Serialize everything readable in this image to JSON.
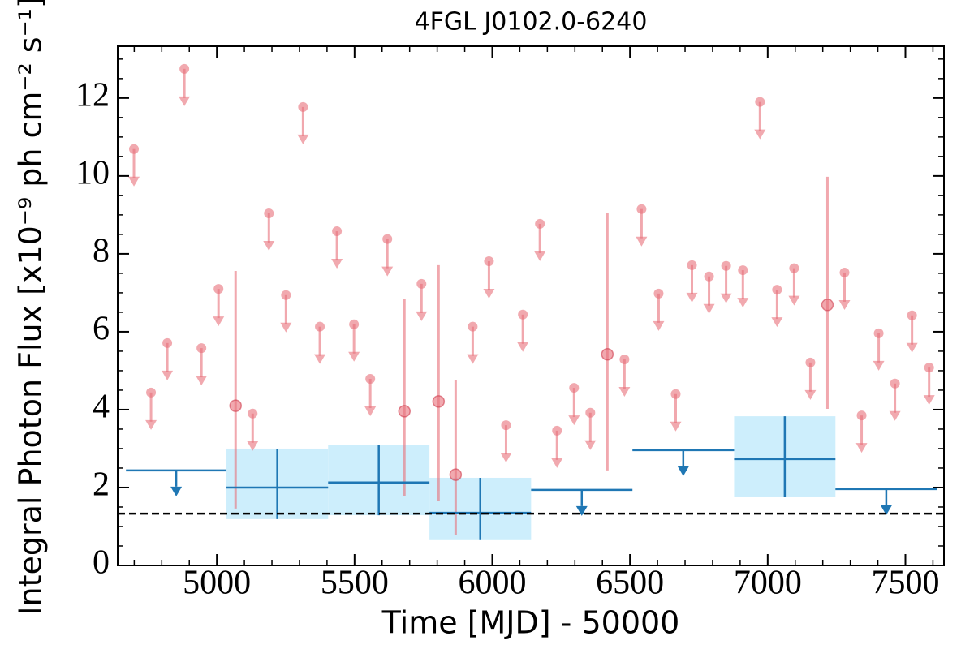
{
  "chart_data": {
    "type": "lightcurve",
    "title": "4FGL J0102.0-6240",
    "x_label": "Time [MJD] - 50000",
    "y_label": "Integral Photon Flux [x10⁻⁹ ph cm⁻² s⁻¹]",
    "xlim": [
      4640,
      7640
    ],
    "ylim": [
      0,
      13.33
    ],
    "xticks": [
      5000,
      5500,
      6000,
      6500,
      7000,
      7500
    ],
    "yticks": [
      0,
      2,
      4,
      6,
      8,
      10,
      12
    ],
    "xminorticks": [
      4700,
      4800,
      4900,
      5100,
      5200,
      5300,
      5400,
      5600,
      5700,
      5800,
      5900,
      6100,
      6200,
      6300,
      6400,
      6600,
      6700,
      6800,
      6900,
      7100,
      7200,
      7300,
      7400,
      7600
    ],
    "yminorticks": [
      0.5,
      1,
      1.5,
      2.5,
      3,
      3.5,
      4.5,
      5,
      5.5,
      6.5,
      7,
      7.5,
      8.5,
      9,
      9.5,
      10.5,
      11,
      11.5,
      12.5,
      13
    ],
    "reference_level": 1.33,
    "short_bins": {
      "color": "#e8707a",
      "x": [
        4699,
        4761,
        4820,
        4882,
        4944,
        5006,
        5068,
        5130,
        5189,
        5251,
        5313,
        5374,
        5436,
        5498,
        5557,
        5619,
        5681,
        5743,
        5805,
        5867,
        5929,
        5988,
        6050,
        6111,
        6173,
        6235,
        6297,
        6356,
        6418,
        6480,
        6542,
        6604,
        6666,
        6725,
        6787,
        6849,
        6910,
        6972,
        7034,
        7096,
        7155,
        7217,
        7279,
        7341,
        7403,
        7462,
        7524,
        7586
      ],
      "values": [
        10.69,
        4.44,
        5.71,
        12.75,
        5.58,
        7.1,
        4.1,
        3.9,
        9.04,
        6.94,
        11.77,
        6.13,
        8.58,
        6.19,
        4.79,
        8.38,
        3.96,
        7.23,
        4.21,
        2.33,
        6.13,
        7.81,
        3.6,
        6.44,
        8.77,
        3.46,
        4.56,
        3.92,
        5.42,
        5.29,
        9.15,
        6.98,
        4.4,
        7.71,
        7.42,
        7.69,
        7.58,
        11.9,
        7.08,
        7.63,
        5.21,
        6.69,
        7.52,
        3.85,
        5.96,
        4.67,
        6.42,
        5.08
      ],
      "lower": [
        null,
        null,
        null,
        null,
        null,
        null,
        1.46,
        null,
        null,
        null,
        null,
        null,
        null,
        null,
        null,
        null,
        1.77,
        null,
        1.65,
        0.77,
        null,
        null,
        null,
        null,
        null,
        null,
        null,
        null,
        2.44,
        null,
        null,
        null,
        null,
        null,
        null,
        null,
        null,
        null,
        null,
        null,
        null,
        4.02,
        null,
        null,
        null,
        null,
        null,
        null
      ],
      "upper": [
        null,
        null,
        null,
        null,
        null,
        null,
        7.56,
        null,
        null,
        null,
        null,
        null,
        null,
        null,
        null,
        null,
        6.85,
        null,
        7.71,
        4.77,
        null,
        null,
        null,
        null,
        null,
        null,
        null,
        null,
        9.04,
        null,
        null,
        null,
        null,
        null,
        null,
        null,
        null,
        null,
        null,
        null,
        null,
        9.98,
        null,
        null,
        null,
        null,
        null,
        null
      ]
    },
    "long_bins": {
      "color": "#1f77b4",
      "box_color": "#cdeefc",
      "bins": [
        4670,
        5035,
        5404,
        5772,
        6141,
        6509,
        6878,
        7246,
        7615
      ],
      "values": [
        2.44,
        2.0,
        2.13,
        1.35,
        1.94,
        2.96,
        2.73,
        1.96
      ],
      "lower": [
        null,
        1.19,
        1.29,
        0.65,
        null,
        null,
        1.75,
        null
      ],
      "upper": [
        null,
        3.0,
        3.1,
        2.25,
        null,
        null,
        3.83,
        null
      ]
    }
  }
}
